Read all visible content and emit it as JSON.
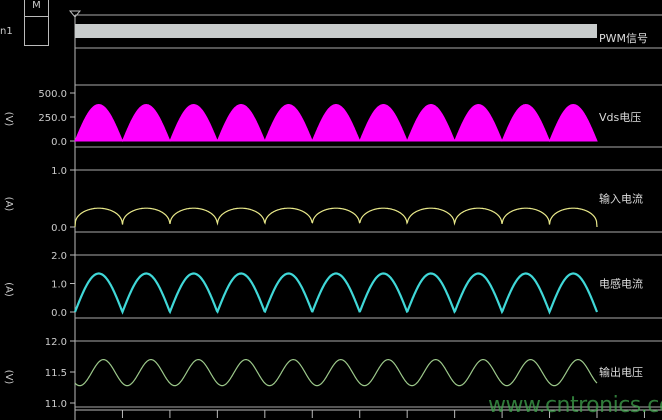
{
  "header": {
    "marker_box_label": "M",
    "channel_label": "n1"
  },
  "watermark": {
    "text": "www.cntronics.com",
    "color": "#3fa34d"
  },
  "chart_data": [
    {
      "type": "bar",
      "label": "PWM信号",
      "color": "#c8cccc",
      "cycles": 11
    },
    {
      "type": "area",
      "label": "Vds电压",
      "unit": "(V)",
      "ylim": [
        0,
        500
      ],
      "yticks": [
        "500.0",
        "250.0",
        "0.0"
      ],
      "tick_values": [
        500,
        250,
        0
      ],
      "peak": 380,
      "min": 0,
      "shape": "rectified-sine",
      "cycles": 11,
      "color": "#ff00ff"
    },
    {
      "type": "line",
      "label": "输入电流",
      "unit": "(A)",
      "ylim": [
        0,
        1
      ],
      "yticks": [
        "1.0",
        "0.0"
      ],
      "tick_values": [
        1,
        0
      ],
      "peak": 0.33,
      "min": 0,
      "shape": "rectified-sine-flat",
      "cycles": 11,
      "color": "#e8e88a"
    },
    {
      "type": "line",
      "label": "电感电流",
      "unit": "(A)",
      "ylim": [
        0,
        2
      ],
      "yticks": [
        "2.0",
        "1.0",
        "0.0"
      ],
      "tick_values": [
        2,
        1,
        0
      ],
      "peak": 1.35,
      "min": 0,
      "shape": "rectified-sine",
      "cycles": 11,
      "color": "#40d8d8"
    },
    {
      "type": "line",
      "label": "输出电压",
      "unit": "(V)",
      "ylim": [
        11,
        12
      ],
      "yticks": [
        "12.0",
        "11.5",
        "11.0"
      ],
      "tick_values": [
        12,
        11.5,
        11
      ],
      "peak": 11.7,
      "min": 11.28,
      "shape": "sine",
      "cycles": 11,
      "color": "#9cc88a"
    }
  ]
}
